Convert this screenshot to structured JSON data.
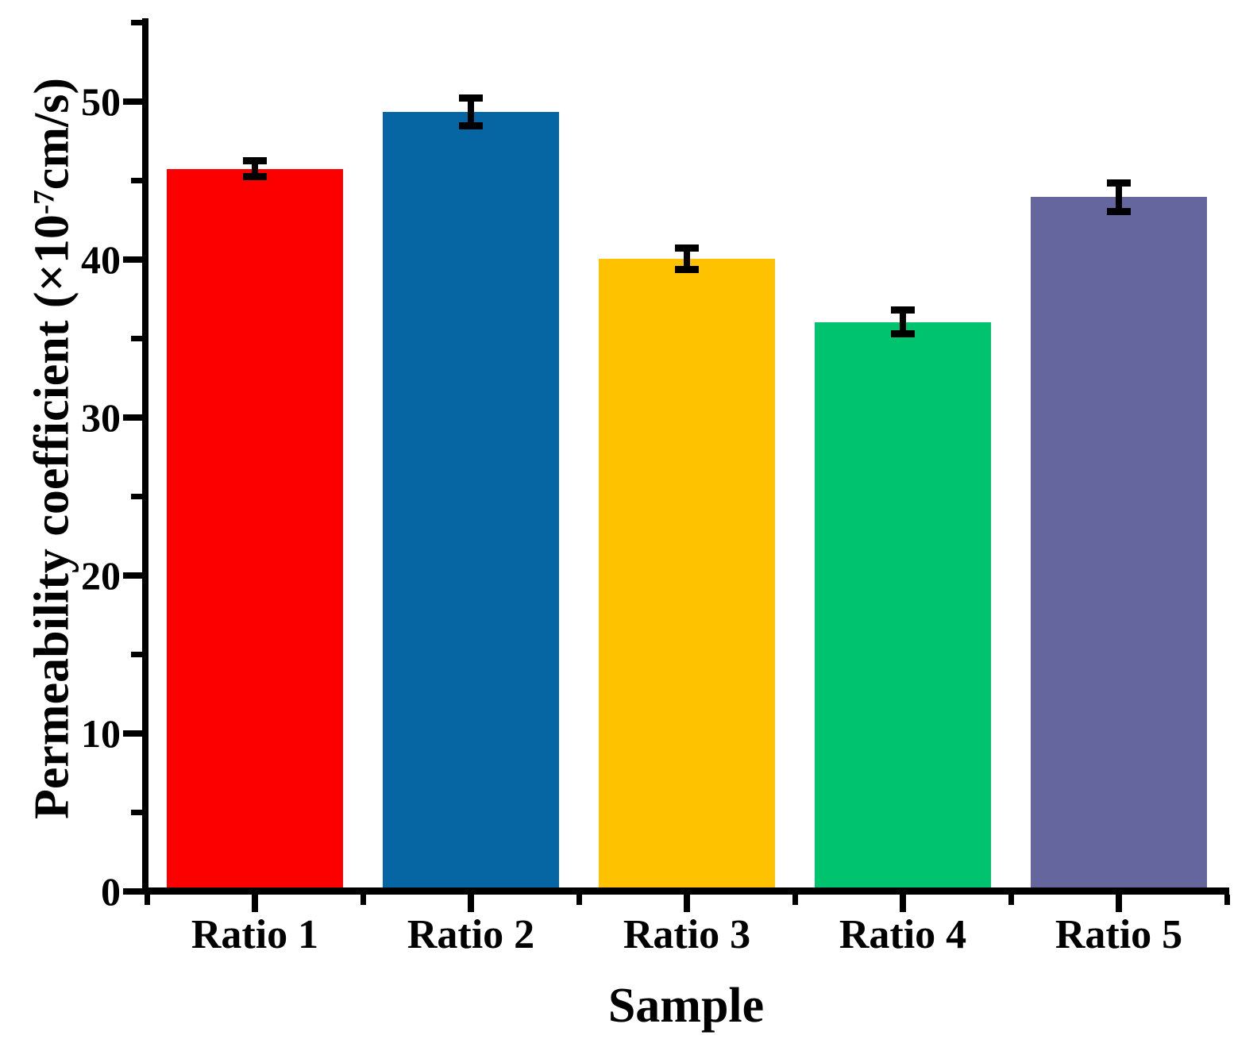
{
  "figure": {
    "background_color": "#ffffff",
    "axis_color": "#000000",
    "error_bar_color": "#000000"
  },
  "chart_data": {
    "type": "bar",
    "title": "",
    "xlabel": "Sample",
    "ylabel": "Permeability coefficient (×10⁻⁷cm/s)",
    "ylabel_rich": {
      "prefix": "Permeability coefficient (×10",
      "superscript": "-7",
      "suffix": "cm/s)"
    },
    "categories": [
      "Ratio 1",
      "Ratio 2",
      "Ratio 3",
      "Ratio 4",
      "Ratio 5"
    ],
    "values": [
      45.5,
      49.1,
      39.8,
      35.8,
      43.7
    ],
    "errors": [
      0.5,
      0.9,
      0.7,
      0.75,
      0.9
    ],
    "bar_colors": [
      "#FC0000",
      "#0566A3",
      "#FFC200",
      "#00C36F",
      "#65669E"
    ],
    "ylim": [
      0,
      55.2
    ],
    "ytick_major": [
      0,
      10,
      20,
      30,
      40,
      50
    ],
    "ytick_minor": [
      5,
      15,
      25,
      35,
      45,
      55
    ],
    "grid": false,
    "legend": null
  }
}
